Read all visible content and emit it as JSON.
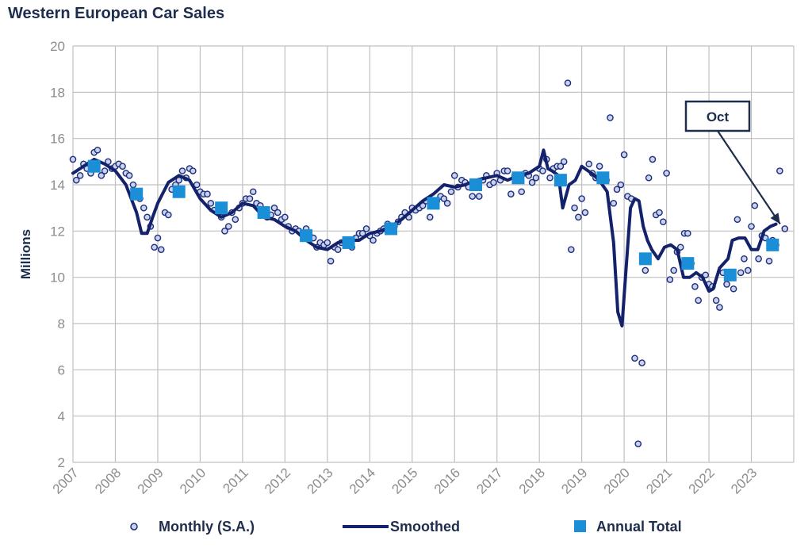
{
  "chart_data": {
    "type": "line",
    "title": "Western European Car Sales",
    "ylabel": "Millions",
    "xlabel": "",
    "ylim": [
      2,
      20
    ],
    "xlim": [
      2007,
      2024
    ],
    "yticks": [
      2,
      4,
      6,
      8,
      10,
      12,
      14,
      16,
      18,
      20
    ],
    "xticks": [
      "2007",
      "2008",
      "2009",
      "2010",
      "2011",
      "2012",
      "2013",
      "2014",
      "2015",
      "2016",
      "2017",
      "2018",
      "2019",
      "2020",
      "2021",
      "2022",
      "2023"
    ],
    "grid": true,
    "legend_position": "bottom",
    "annotation": {
      "text": "Oct",
      "x": 2023.79,
      "y": 12.1
    },
    "colors": {
      "monthly": "#1e2d7a",
      "smoothed": "#13226b",
      "annual": "#1a8ed6",
      "grid": "#c0c0c0",
      "tick": "#8c8c8c",
      "text": "#1f2d4d"
    },
    "series": [
      {
        "name": "Monthly (S.A.)",
        "kind": "scatter",
        "x": [
          2007.0,
          2007.08,
          2007.17,
          2007.25,
          2007.33,
          2007.42,
          2007.5,
          2007.58,
          2007.67,
          2007.75,
          2007.83,
          2007.92,
          2008.0,
          2008.08,
          2008.17,
          2008.25,
          2008.33,
          2008.42,
          2008.5,
          2008.58,
          2008.67,
          2008.75,
          2008.83,
          2008.92,
          2009.0,
          2009.08,
          2009.17,
          2009.25,
          2009.33,
          2009.42,
          2009.5,
          2009.58,
          2009.67,
          2009.75,
          2009.83,
          2009.92,
          2010.0,
          2010.08,
          2010.17,
          2010.25,
          2010.33,
          2010.42,
          2010.5,
          2010.58,
          2010.67,
          2010.75,
          2010.83,
          2010.92,
          2011.0,
          2011.08,
          2011.17,
          2011.25,
          2011.33,
          2011.42,
          2011.5,
          2011.58,
          2011.67,
          2011.75,
          2011.83,
          2011.92,
          2012.0,
          2012.08,
          2012.17,
          2012.25,
          2012.33,
          2012.42,
          2012.5,
          2012.58,
          2012.67,
          2012.75,
          2012.83,
          2012.92,
          2013.0,
          2013.08,
          2013.17,
          2013.25,
          2013.33,
          2013.42,
          2013.5,
          2013.58,
          2013.67,
          2013.75,
          2013.83,
          2013.92,
          2014.0,
          2014.08,
          2014.17,
          2014.25,
          2014.33,
          2014.42,
          2014.5,
          2014.58,
          2014.67,
          2014.75,
          2014.83,
          2014.92,
          2015.0,
          2015.08,
          2015.17,
          2015.25,
          2015.33,
          2015.42,
          2015.5,
          2015.58,
          2015.67,
          2015.75,
          2015.83,
          2015.92,
          2016.0,
          2016.08,
          2016.17,
          2016.25,
          2016.33,
          2016.42,
          2016.5,
          2016.58,
          2016.67,
          2016.75,
          2016.83,
          2016.92,
          2017.0,
          2017.08,
          2017.17,
          2017.25,
          2017.33,
          2017.42,
          2017.5,
          2017.58,
          2017.67,
          2017.75,
          2017.83,
          2017.92,
          2018.0,
          2018.08,
          2018.17,
          2018.25,
          2018.33,
          2018.42,
          2018.5,
          2018.58,
          2018.67,
          2018.75,
          2018.83,
          2018.92,
          2019.0,
          2019.08,
          2019.17,
          2019.25,
          2019.33,
          2019.42,
          2019.5,
          2019.58,
          2019.67,
          2019.75,
          2019.83,
          2019.92,
          2020.0,
          2020.08,
          2020.17,
          2020.25,
          2020.33,
          2020.42,
          2020.5,
          2020.58,
          2020.67,
          2020.75,
          2020.83,
          2020.92,
          2021.0,
          2021.08,
          2021.17,
          2021.25,
          2021.33,
          2021.42,
          2021.5,
          2021.58,
          2021.67,
          2021.75,
          2021.83,
          2021.92,
          2022.0,
          2022.08,
          2022.17,
          2022.25,
          2022.33,
          2022.42,
          2022.5,
          2022.58,
          2022.67,
          2022.75,
          2022.83,
          2022.92,
          2023.0,
          2023.08,
          2023.17,
          2023.25,
          2023.33,
          2023.42,
          2023.5,
          2023.58,
          2023.67,
          2023.79
        ],
        "y": [
          15.1,
          14.2,
          14.4,
          14.9,
          14.7,
          14.5,
          15.4,
          15.5,
          14.4,
          14.6,
          15.0,
          14.7,
          14.8,
          14.9,
          14.8,
          14.5,
          14.4,
          14.0,
          13.6,
          13.4,
          13.0,
          12.6,
          12.2,
          11.3,
          11.7,
          11.2,
          12.8,
          12.7,
          13.8,
          14.0,
          14.2,
          14.6,
          14.3,
          14.7,
          14.6,
          14.0,
          13.7,
          13.6,
          13.6,
          13.2,
          12.9,
          12.8,
          12.6,
          12.0,
          12.2,
          12.8,
          12.5,
          13.0,
          13.2,
          13.4,
          13.4,
          13.7,
          13.2,
          13.1,
          12.8,
          12.6,
          12.7,
          13.0,
          12.8,
          12.5,
          12.6,
          12.2,
          12.0,
          12.1,
          12.0,
          11.9,
          12.1,
          11.8,
          11.7,
          11.3,
          11.5,
          11.4,
          11.5,
          10.7,
          11.3,
          11.2,
          11.5,
          11.5,
          11.6,
          11.3,
          11.7,
          11.9,
          11.9,
          12.1,
          11.8,
          11.6,
          11.9,
          12.0,
          12.1,
          12.3,
          12.0,
          12.2,
          12.4,
          12.6,
          12.8,
          12.6,
          13.0,
          12.9,
          13.0,
          13.1,
          13.3,
          12.6,
          13.3,
          13.3,
          13.5,
          13.4,
          13.2,
          13.7,
          14.4,
          13.9,
          14.2,
          14.1,
          13.9,
          13.5,
          14.0,
          13.5,
          14.2,
          14.4,
          14.0,
          14.1,
          14.5,
          14.2,
          14.6,
          14.6,
          13.6,
          14.4,
          14.2,
          13.7,
          14.5,
          14.4,
          14.1,
          14.3,
          14.7,
          14.6,
          15.1,
          14.3,
          14.7,
          14.8,
          14.8,
          15.0,
          18.4,
          11.2,
          13.0,
          12.6,
          13.4,
          12.8,
          14.9,
          14.5,
          14.3,
          14.8,
          14.4,
          14.2,
          16.9,
          13.2,
          13.8,
          14.0,
          15.3,
          13.5,
          13.4,
          6.5,
          2.8,
          6.3,
          10.3,
          14.3,
          15.1,
          12.7,
          12.8,
          12.4,
          14.5,
          9.9,
          10.3,
          11.1,
          11.3,
          11.9,
          11.9,
          10.6,
          9.6,
          9.0,
          10.0,
          10.1,
          9.7,
          9.6,
          9.0,
          8.7,
          10.2,
          9.7,
          10.1,
          9.5,
          12.5,
          10.2,
          10.8,
          10.3,
          12.2,
          13.1,
          10.8,
          11.8,
          11.7,
          10.7,
          11.6,
          11.4,
          14.6,
          12.1
        ]
      },
      {
        "name": "Smoothed",
        "kind": "line",
        "x": [
          2007.0,
          2007.25,
          2007.5,
          2007.75,
          2008.0,
          2008.25,
          2008.5,
          2008.62,
          2008.75,
          2008.88,
          2009.0,
          2009.25,
          2009.5,
          2009.75,
          2010.0,
          2010.25,
          2010.5,
          2010.75,
          2011.0,
          2011.25,
          2011.5,
          2011.75,
          2012.0,
          2012.25,
          2012.5,
          2012.75,
          2013.0,
          2013.25,
          2013.5,
          2013.75,
          2014.0,
          2014.25,
          2014.5,
          2014.75,
          2015.0,
          2015.25,
          2015.5,
          2015.75,
          2016.0,
          2016.25,
          2016.5,
          2016.75,
          2017.0,
          2017.25,
          2017.5,
          2017.75,
          2018.0,
          2018.1,
          2018.2,
          2018.3,
          2018.45,
          2018.55,
          2018.7,
          2018.85,
          2019.0,
          2019.15,
          2019.3,
          2019.45,
          2019.6,
          2019.75,
          2019.85,
          2019.95,
          2020.05,
          2020.15,
          2020.25,
          2020.35,
          2020.45,
          2020.55,
          2020.65,
          2020.8,
          2020.95,
          2021.1,
          2021.25,
          2021.4,
          2021.55,
          2021.7,
          2021.85,
          2022.0,
          2022.1,
          2022.25,
          2022.45,
          2022.55,
          2022.7,
          2022.85,
          2023.0,
          2023.15,
          2023.3,
          2023.45,
          2023.58
        ],
        "y": [
          14.5,
          14.8,
          15.1,
          14.9,
          14.6,
          14.0,
          12.8,
          11.9,
          11.9,
          12.6,
          13.2,
          14.1,
          14.4,
          14.2,
          13.4,
          12.9,
          12.6,
          12.8,
          13.2,
          13.1,
          12.6,
          12.5,
          12.2,
          12.0,
          11.6,
          11.3,
          11.2,
          11.5,
          11.6,
          11.6,
          11.9,
          12.0,
          12.2,
          12.5,
          12.9,
          13.3,
          13.6,
          14.0,
          13.9,
          14.0,
          14.2,
          14.3,
          14.4,
          14.2,
          14.4,
          14.5,
          14.8,
          15.5,
          14.7,
          14.6,
          14.4,
          13.0,
          14.0,
          14.2,
          14.8,
          14.6,
          14.4,
          14.1,
          13.7,
          11.5,
          8.5,
          7.9,
          10.5,
          13.0,
          13.4,
          13.3,
          12.2,
          11.6,
          11.2,
          10.8,
          11.3,
          11.4,
          11.2,
          10.0,
          10.0,
          10.2,
          10.0,
          9.4,
          9.5,
          10.4,
          10.8,
          11.6,
          11.7,
          11.7,
          11.2,
          11.2,
          12.0,
          12.2,
          12.3
        ]
      },
      {
        "name": "Annual Total",
        "kind": "square",
        "x": [
          2007.5,
          2008.5,
          2009.5,
          2010.5,
          2011.5,
          2012.5,
          2013.5,
          2014.5,
          2015.5,
          2016.5,
          2017.5,
          2018.5,
          2019.5,
          2020.5,
          2021.5,
          2022.5,
          2023.5
        ],
        "y": [
          14.8,
          13.6,
          13.7,
          13.0,
          12.8,
          11.8,
          11.5,
          12.1,
          13.2,
          14.0,
          14.3,
          14.2,
          14.3,
          10.8,
          10.6,
          10.1,
          11.4
        ]
      }
    ]
  }
}
